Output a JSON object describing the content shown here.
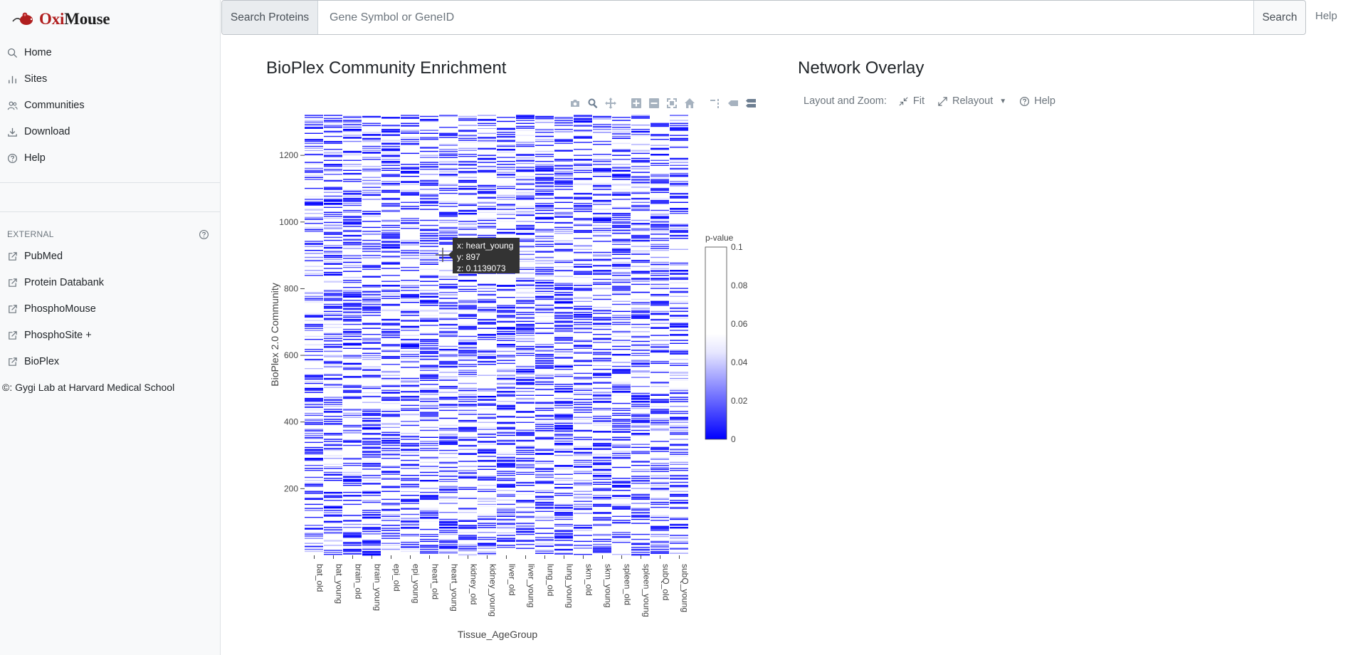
{
  "brand": {
    "name_part1": "Oxi",
    "name_part2": "Mouse",
    "colors": {
      "oxi": "#b01e1e",
      "mouse": "#1e1e1e"
    }
  },
  "sidebar": {
    "nav": [
      {
        "label": "Home",
        "icon": "search-icon"
      },
      {
        "label": "Sites",
        "icon": "bar-chart-icon"
      },
      {
        "label": "Communities",
        "icon": "people-icon"
      },
      {
        "label": "Download",
        "icon": "download-icon"
      },
      {
        "label": "Help",
        "icon": "question-circle-icon"
      }
    ],
    "external_heading": "EXTERNAL",
    "external": [
      {
        "label": "PubMed",
        "icon": "external-link-icon"
      },
      {
        "label": "Protein Databank",
        "icon": "external-link-icon"
      },
      {
        "label": "PhosphoMouse",
        "icon": "external-link-icon"
      },
      {
        "label": "PhosphoSite +",
        "icon": "external-link-icon"
      },
      {
        "label": "BioPlex",
        "icon": "external-link-icon"
      }
    ],
    "footer": "©: Gygi Lab at Harvard Medical School"
  },
  "search": {
    "prefix_label": "Search Proteins",
    "placeholder": "Gene Symbol or GeneID",
    "value": "",
    "button_label": "Search"
  },
  "top_help_label": "Help",
  "heatmap_panel": {
    "title": "BioPlex Community Enrichment"
  },
  "network_panel": {
    "title": "Network Overlay",
    "layout_label": "Layout and Zoom:",
    "fit_label": "Fit",
    "relayout_label": "Relayout",
    "help_label": "Help"
  },
  "chart_data": {
    "type": "heatmap",
    "title": "",
    "xlabel": "Tissue_AgeGroup",
    "ylabel": "BioPlex 2.0 Community",
    "categories": [
      "bat_old",
      "bat_young",
      "brain_old",
      "brain_young",
      "epi_old",
      "epi_young",
      "heart_old",
      "heart_young",
      "kidney_old",
      "kidney_young",
      "liver_old",
      "liver_young",
      "lung_old",
      "lung_young",
      "skm_old",
      "skm_young",
      "spleen_old",
      "spleen_young",
      "subQ_old",
      "subQ_young"
    ],
    "ylim": [
      0,
      1320
    ],
    "yticks": [
      200,
      400,
      600,
      800,
      1000,
      1200
    ],
    "colorbar": {
      "title": "p-value",
      "range": [
        0,
        0.1
      ],
      "ticks": [
        0,
        0.02,
        0.04,
        0.06,
        0.08,
        0.1
      ],
      "color_low": "#0000ff",
      "color_high": "#ffffff"
    },
    "hover": {
      "x": "heart_young",
      "y": "897",
      "z": "0.1139073"
    },
    "cells_note": "dense sparse matrix of ~1300 communities x 20 tissues; only significant cells colored"
  }
}
